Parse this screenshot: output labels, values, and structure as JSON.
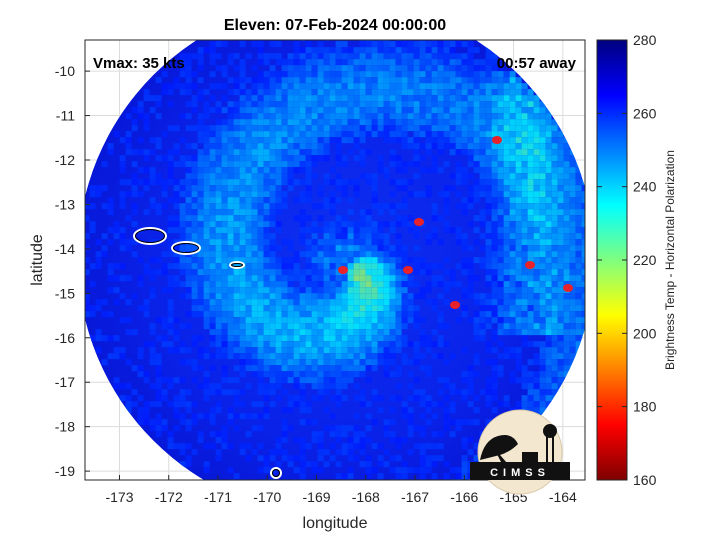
{
  "chart_data": {
    "type": "heatmap",
    "title": "Eleven: 07-Feb-2024 00:00:00",
    "xlabel": "longitude",
    "ylabel": "latitude",
    "xlim": [
      -173.7,
      -163.55
    ],
    "ylim": [
      -19.2,
      -9.3
    ],
    "x_ticks": [
      -173,
      -172,
      -171,
      -170,
      -169,
      -168,
      -167,
      -166,
      -165,
      -164
    ],
    "y_ticks": [
      -10,
      -11,
      -12,
      -13,
      -14,
      -15,
      -16,
      -17,
      -18,
      -19
    ],
    "grid": true,
    "annotations": {
      "vmax": "Vmax: 35 kts",
      "time_away": "00:57 away"
    },
    "colorbar": {
      "label": "Brightness Temp - Horizontal Polarization",
      "min": 160,
      "max": 280,
      "ticks": [
        280,
        260,
        240,
        220,
        200,
        180,
        160
      ],
      "colormap": [
        "#00007f",
        "#0000ff",
        "#007fff",
        "#00ffff",
        "#7fff7f",
        "#ffff00",
        "#ff7f00",
        "#ff0000",
        "#7f0000"
      ]
    },
    "swath_center": [
      -168.6,
      -14.2
    ],
    "swath_radius_deg": 5.25,
    "storm_center": [
      -168.4,
      -14.4
    ],
    "logo_text": "CIMSS"
  }
}
